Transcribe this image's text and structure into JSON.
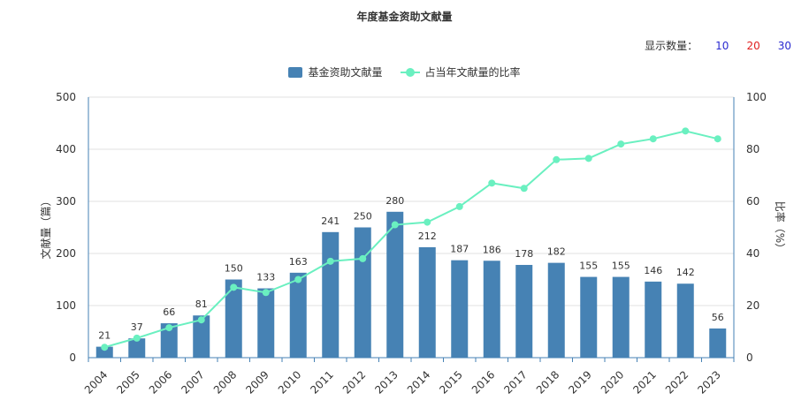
{
  "title": "年度基金资助文献量",
  "display_count": {
    "label": "显示数量：",
    "options": [
      {
        "label": "10",
        "color": "#2a2ad0"
      },
      {
        "label": "20",
        "color": "#e02020"
      },
      {
        "label": "30",
        "color": "#2a2ad0"
      }
    ]
  },
  "legend": {
    "bar_label": "基金资助文献量",
    "line_label": "占当年文献量的比率"
  },
  "chart_data": {
    "type": "bar",
    "categories": [
      "2004",
      "2005",
      "2006",
      "2007",
      "2008",
      "2009",
      "2010",
      "2011",
      "2012",
      "2013",
      "2014",
      "2015",
      "2016",
      "2017",
      "2018",
      "2019",
      "2020",
      "2021",
      "2022",
      "2023"
    ],
    "series": [
      {
        "name": "基金资助文献量",
        "type": "bar",
        "axis": "left",
        "color": "#4682b4",
        "values": [
          21,
          37,
          66,
          81,
          150,
          133,
          163,
          241,
          250,
          280,
          212,
          187,
          186,
          178,
          182,
          155,
          155,
          146,
          142,
          56
        ]
      },
      {
        "name": "占当年文献量的比率",
        "type": "line",
        "axis": "right",
        "color": "#6af0c0",
        "values": [
          4,
          7.5,
          11.5,
          14.5,
          27,
          25,
          30,
          37,
          38,
          51,
          52,
          58,
          67,
          65,
          76,
          76.5,
          82,
          84,
          87,
          84
        ]
      }
    ],
    "ylabel_left": "文献量（篇）",
    "ylabel_right": "比率（%）",
    "ylim_left": [
      0,
      500
    ],
    "ylim_right": [
      0,
      100
    ],
    "yticks_left": [
      "0",
      "100",
      "200",
      "300",
      "400",
      "500"
    ],
    "yticks_right": [
      "0",
      "20",
      "40",
      "60",
      "80",
      "100"
    ],
    "grid": true
  }
}
